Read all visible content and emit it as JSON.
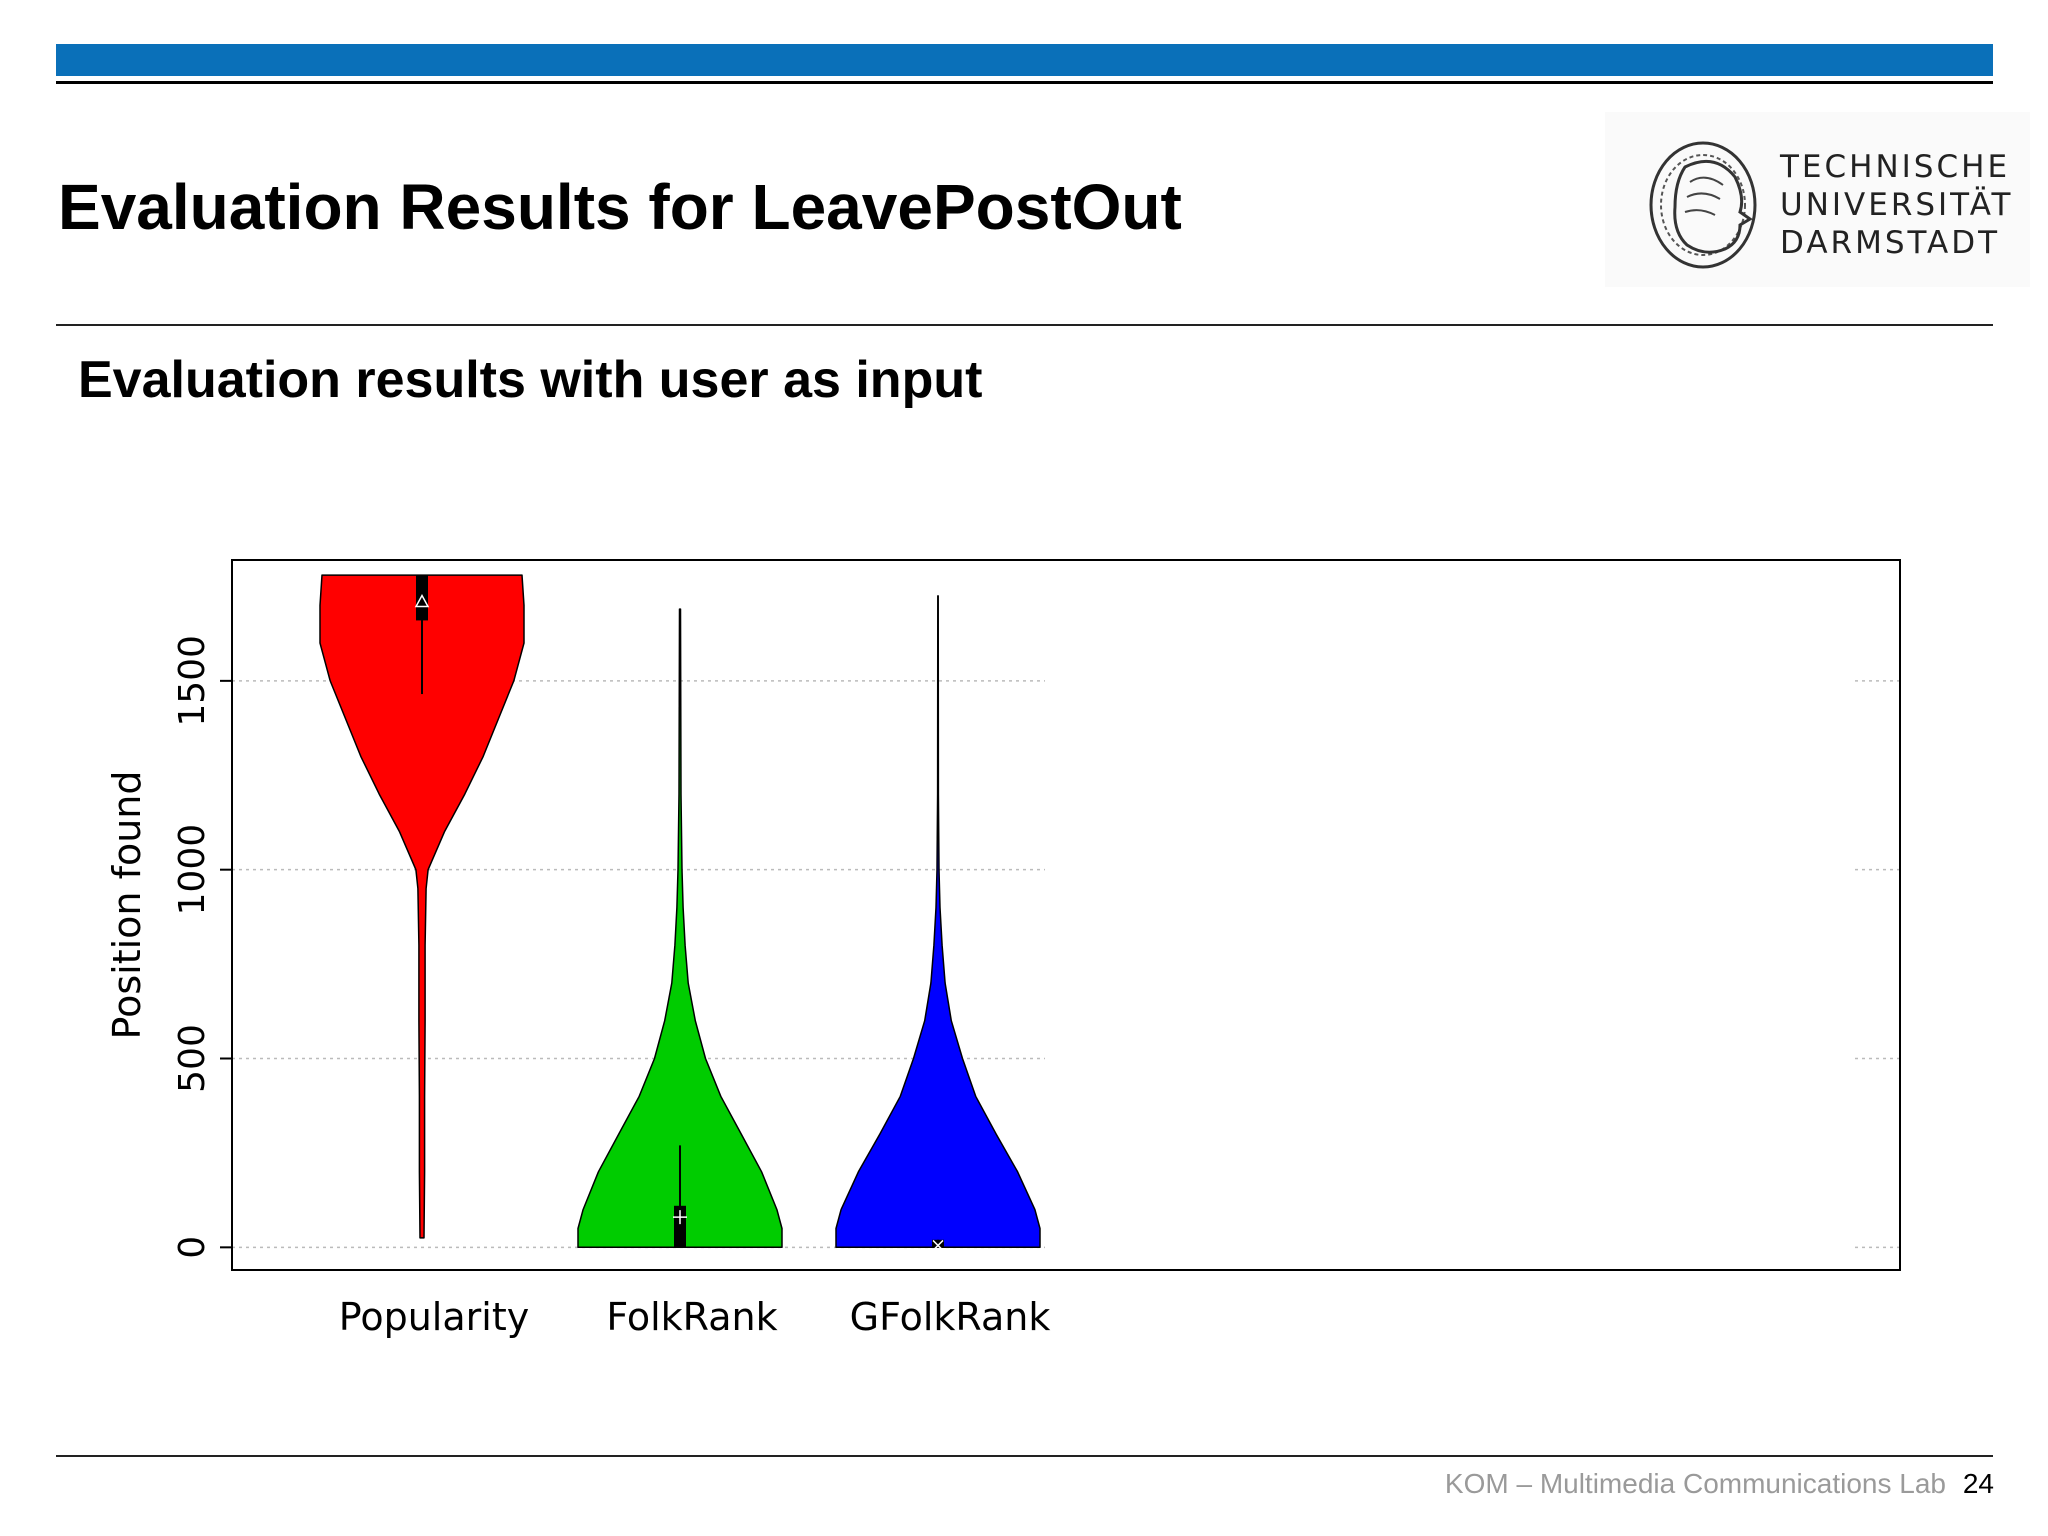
{
  "slide": {
    "title": "Evaluation Results for LeavePostOut",
    "subtitle": "Evaluation results with user as input",
    "logo_lines": [
      "TECHNISCHE",
      "UNIVERSITÄT",
      "DARMSTADT"
    ],
    "footer_lab": "KOM – Multimedia Communications Lab",
    "page_number": "24"
  },
  "colors": {
    "header_bar": "#0a70b9",
    "popularity": "#ff0000",
    "folkrank": "#00cc00",
    "gfolkrank": "#0000ff"
  },
  "chart_data": {
    "type": "violin",
    "ylabel": "Position found",
    "ylim": [
      -60,
      1820
    ],
    "yticks": [
      0,
      500,
      1000,
      1500
    ],
    "grid": true,
    "categories": [
      "Popularity",
      "FolkRank",
      "GFolkRank"
    ],
    "series": [
      {
        "name": "Popularity",
        "color": "#ff0000",
        "min": 25,
        "max": 1780,
        "q1": 1660,
        "q3": 1780,
        "median": 1710,
        "whisker_low": 1465,
        "median_marker": "triangle",
        "density": [
          [
            25,
            0.02
          ],
          [
            200,
            0.025
          ],
          [
            400,
            0.025
          ],
          [
            600,
            0.03
          ],
          [
            800,
            0.03
          ],
          [
            950,
            0.04
          ],
          [
            1000,
            0.06
          ],
          [
            1100,
            0.22
          ],
          [
            1200,
            0.42
          ],
          [
            1300,
            0.6
          ],
          [
            1400,
            0.75
          ],
          [
            1500,
            0.9
          ],
          [
            1600,
            1.0
          ],
          [
            1700,
            1.0
          ],
          [
            1780,
            0.98
          ]
        ]
      },
      {
        "name": "FolkRank",
        "color": "#00cc00",
        "min": 0,
        "max": 1690,
        "q1": 0,
        "q3": 110,
        "median": 80,
        "whisker_high": 270,
        "median_marker": "plus",
        "density": [
          [
            0,
            1.0
          ],
          [
            50,
            1.0
          ],
          [
            100,
            0.95
          ],
          [
            200,
            0.8
          ],
          [
            300,
            0.6
          ],
          [
            400,
            0.4
          ],
          [
            500,
            0.25
          ],
          [
            600,
            0.15
          ],
          [
            700,
            0.08
          ],
          [
            800,
            0.05
          ],
          [
            900,
            0.03
          ],
          [
            1000,
            0.02
          ],
          [
            1200,
            0.01
          ],
          [
            1690,
            0.005
          ]
        ]
      },
      {
        "name": "GFolkRank",
        "color": "#0000ff",
        "min": 0,
        "max": 1725,
        "q1": 0,
        "q3": 20,
        "median": 5,
        "median_marker": "cross",
        "density": [
          [
            0,
            1.0
          ],
          [
            50,
            1.0
          ],
          [
            100,
            0.95
          ],
          [
            200,
            0.78
          ],
          [
            300,
            0.57
          ],
          [
            400,
            0.37
          ],
          [
            500,
            0.24
          ],
          [
            600,
            0.13
          ],
          [
            700,
            0.07
          ],
          [
            800,
            0.04
          ],
          [
            900,
            0.02
          ],
          [
            1000,
            0.01
          ],
          [
            1200,
            0.004
          ],
          [
            1725,
            0.002
          ]
        ]
      }
    ]
  }
}
